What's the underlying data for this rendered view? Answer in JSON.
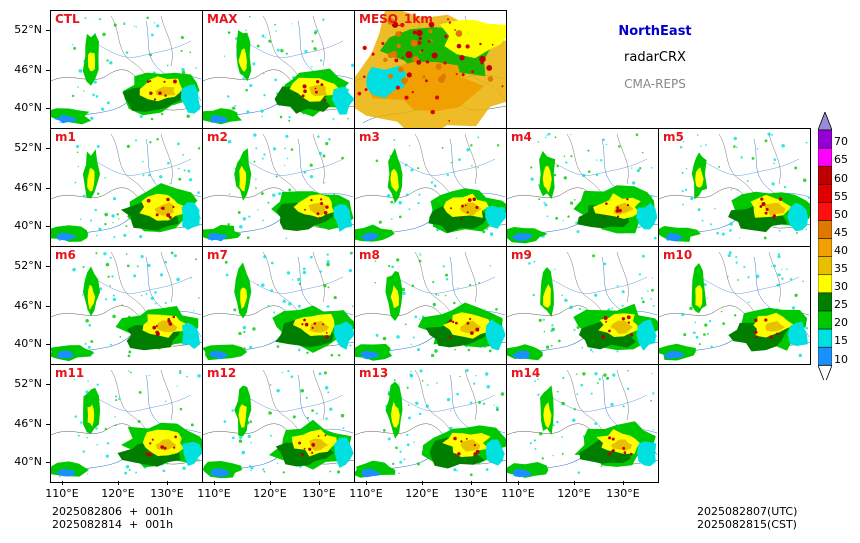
{
  "header": {
    "region": "NorthEast",
    "variable": "radarCRX",
    "model": "CMA-REPS"
  },
  "panels": [
    {
      "label": "CTL",
      "row": 0,
      "col": 0
    },
    {
      "label": "MAX",
      "row": 0,
      "col": 1
    },
    {
      "label": "MESO_1km",
      "row": 0,
      "col": 2
    },
    {
      "label": "m1",
      "row": 1,
      "col": 0
    },
    {
      "label": "m2",
      "row": 1,
      "col": 1
    },
    {
      "label": "m3",
      "row": 1,
      "col": 2
    },
    {
      "label": "m4",
      "row": 1,
      "col": 3
    },
    {
      "label": "m5",
      "row": 1,
      "col": 4
    },
    {
      "label": "m6",
      "row": 2,
      "col": 0
    },
    {
      "label": "m7",
      "row": 2,
      "col": 1
    },
    {
      "label": "m8",
      "row": 2,
      "col": 2
    },
    {
      "label": "m9",
      "row": 2,
      "col": 3
    },
    {
      "label": "m10",
      "row": 2,
      "col": 4
    },
    {
      "label": "m11",
      "row": 3,
      "col": 0
    },
    {
      "label": "m12",
      "row": 3,
      "col": 1
    },
    {
      "label": "m13",
      "row": 3,
      "col": 2
    },
    {
      "label": "m14",
      "row": 3,
      "col": 3
    }
  ],
  "axes": {
    "lat_labels": [
      "52°N",
      "46°N",
      "40°N"
    ],
    "lon_labels": [
      "110°E",
      "120°E",
      "130°E"
    ]
  },
  "colorbar": {
    "labels": [
      "70",
      "65",
      "60",
      "55",
      "50",
      "45",
      "40",
      "35",
      "30",
      "25",
      "20",
      "15",
      "10"
    ],
    "colors": [
      "#9b8bd6",
      "#9400d3",
      "#ff00ff",
      "#c00000",
      "#e00000",
      "#ff1010",
      "#e07800",
      "#f0a000",
      "#e8c000",
      "#ffff00",
      "#007e00",
      "#00c800",
      "#00e0e0",
      "#1a90ff"
    ],
    "extend": "both"
  },
  "footer": {
    "init_utc": "2025082806  +  001h",
    "init_cst": "2025082814  +  001h",
    "valid_utc": "2025082807(UTC)",
    "valid_cst": "2025082815(CST)"
  }
}
